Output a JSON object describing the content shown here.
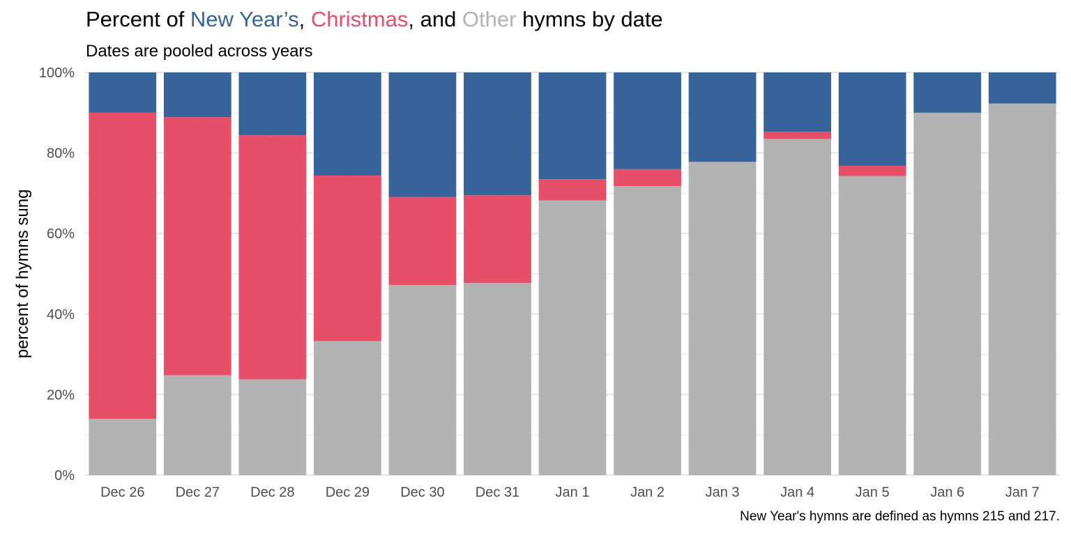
{
  "title_parts": {
    "p1": "Percent of ",
    "ny": "New Year’s",
    "p2": ", ",
    "xmas": "Christmas",
    "p3": ", and ",
    "other": "Other",
    "p4": " hymns by date"
  },
  "subtitle": "Dates are pooled across years",
  "caption": "New Year's hymns are defined as hymns 215 and 217.",
  "colors": {
    "new_years": "#36639A",
    "christmas": "#E74F69",
    "other": "#B3B3B3",
    "grid": "#E5E5E5",
    "text": "#000000",
    "axis_text": "#4D4D4D"
  },
  "chart_data": {
    "type": "bar",
    "stacked": true,
    "categories": [
      "Dec 26",
      "Dec 27",
      "Dec 28",
      "Dec 29",
      "Dec 30",
      "Dec 31",
      "Jan 1",
      "Jan 2",
      "Jan 3",
      "Jan 4",
      "Jan 5",
      "Jan 6",
      "Jan 7"
    ],
    "series": [
      {
        "name": "Other",
        "color": "#B3B3B3",
        "values": [
          14.0,
          24.8,
          23.8,
          33.3,
          47.2,
          47.7,
          68.2,
          71.8,
          77.8,
          83.5,
          74.3,
          90.0,
          92.3
        ]
      },
      {
        "name": "Christmas",
        "color": "#E74F69",
        "values": [
          76.0,
          64.1,
          60.6,
          41.1,
          21.9,
          21.8,
          5.3,
          4.2,
          0.0,
          1.8,
          2.5,
          0.0,
          0.0
        ]
      },
      {
        "name": "New Year’s",
        "color": "#36639A",
        "values": [
          10.0,
          11.1,
          15.6,
          25.6,
          30.9,
          30.5,
          26.5,
          24.0,
          22.2,
          14.7,
          23.2,
          10.0,
          7.7
        ]
      }
    ],
    "ylabel": "percent of hymns sung",
    "xlabel": "",
    "ylim": [
      0,
      100
    ],
    "yticks": [
      0,
      20,
      40,
      60,
      80,
      100
    ],
    "ytick_labels": [
      "0%",
      "20%",
      "40%",
      "60%",
      "80%",
      "100%"
    ],
    "grid": true,
    "legend": "none (encoded in title colors)"
  }
}
